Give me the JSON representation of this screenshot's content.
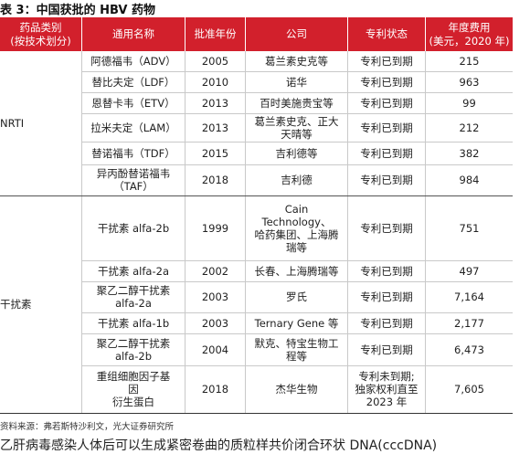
{
  "title": "表 3：中国获批的 HBV 药物",
  "headers": {
    "category": [
      "药品类别",
      "(按技术划分)"
    ],
    "name": "通用名称",
    "year": "批准年份",
    "company": "公司",
    "patent": "专利状态",
    "cost": [
      "年度费用",
      "(美元，2020 年)"
    ]
  },
  "groups": [
    {
      "label": "NRTI"
    },
    {
      "label": "干扰素"
    }
  ],
  "rows": [
    {
      "name": [
        "阿德福韦（ADV）"
      ],
      "year": "2005",
      "company": [
        "葛兰素史克等"
      ],
      "patent": [
        "专利已到期"
      ],
      "cost": "215"
    },
    {
      "name": [
        "替比夫定（LDF）"
      ],
      "year": "2010",
      "company": [
        "诺华"
      ],
      "patent": [
        "专利已到期"
      ],
      "cost": "963"
    },
    {
      "name": [
        "恩替卡韦（ETV）"
      ],
      "year": "2013",
      "company": [
        "百时美施贵宝等"
      ],
      "patent": [
        "专利已到期"
      ],
      "cost": "99"
    },
    {
      "name": [
        "拉米夫定（LAM）"
      ],
      "year": "2013",
      "company": [
        "葛兰素史克、正大",
        "天晴等"
      ],
      "patent": [
        "专利已到期"
      ],
      "cost": "212"
    },
    {
      "name": [
        "替诺福韦（TDF）"
      ],
      "year": "2015",
      "company": [
        "吉利德等"
      ],
      "patent": [
        "专利已到期"
      ],
      "cost": "382"
    },
    {
      "name": [
        "异丙酚替诺福韦",
        "（TAF）"
      ],
      "year": "2018",
      "company": [
        "吉利德"
      ],
      "patent": [
        "专利已到期"
      ],
      "cost": "984"
    },
    {
      "name": [
        "干扰素 alfa-2b"
      ],
      "year": "1999",
      "company": [
        "Cain",
        "Technology、",
        "哈药集团、上海腾",
        "瑞等"
      ],
      "patent": [
        "专利已到期"
      ],
      "cost": "751"
    },
    {
      "name": [
        "干扰素 alfa-2a"
      ],
      "year": "2002",
      "company": [
        "长春、上海腾瑞等"
      ],
      "patent": [
        "专利已到期"
      ],
      "cost": "497"
    },
    {
      "name": [
        "聚乙二醇干扰素",
        "alfa-2a"
      ],
      "year": "2003",
      "company": [
        "罗氏"
      ],
      "patent": [
        "专利已到期"
      ],
      "cost": "7,164"
    },
    {
      "name": [
        "干扰素 alfa-1b"
      ],
      "year": "2003",
      "company": [
        "Ternary Gene 等"
      ],
      "patent": [
        "专利已到期"
      ],
      "cost": "2,177"
    },
    {
      "name": [
        "聚乙二醇干扰素",
        "alfa-2b"
      ],
      "year": "2004",
      "company": [
        "默克、特宝生物工",
        "程等"
      ],
      "patent": [
        "专利已到期"
      ],
      "cost": "6,473"
    },
    {
      "name": [
        "重组细胞因子基",
        "因",
        "衍生蛋白"
      ],
      "year": "2018",
      "company": [
        "杰华生物"
      ],
      "patent": [
        "专利未到期;",
        "独家权利直至",
        "2023 年"
      ],
      "cost": "7,605"
    }
  ],
  "source": "资料来源：弗若斯特沙利文，光大证券研究所",
  "paragraph": "乙肝病毒感染人体后可以生成紧密卷曲的质粒样共价闭合环状 DNA(cccDNA)"
}
